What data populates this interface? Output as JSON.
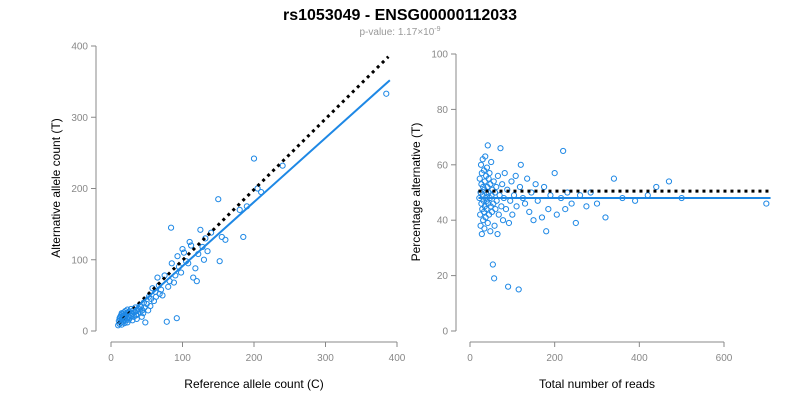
{
  "header": {
    "title": "rs1053049 - ENSG00000112033",
    "pvalue_prefix": "p-value: 1.17",
    "pvalue_times": "×10",
    "pvalue_exp": "-9"
  },
  "colors": {
    "points": "#1e88e5",
    "fit_line": "#1e88e5",
    "reference_line": "#000000",
    "axis": "#888888",
    "subtitle": "#999999"
  },
  "chart_data": [
    {
      "type": "scatter",
      "title": "",
      "xlabel": "Reference allele count (C)",
      "ylabel": "Alternative allele count (T)",
      "xlim": [
        0,
        400
      ],
      "ylim": [
        0,
        400
      ],
      "xticks": [
        0,
        100,
        200,
        300,
        400
      ],
      "yticks": [
        0,
        100,
        200,
        300,
        400
      ],
      "grid": false,
      "fit_line": {
        "style": "solid",
        "from": [
          10,
          10
        ],
        "to": [
          390,
          352
        ]
      },
      "reference_line": {
        "style": "dotted",
        "from": [
          10,
          10
        ],
        "to": [
          388,
          385
        ]
      },
      "points": [
        [
          10,
          8
        ],
        [
          11,
          14
        ],
        [
          12,
          18
        ],
        [
          12,
          10
        ],
        [
          13,
          20
        ],
        [
          13,
          15
        ],
        [
          14,
          22
        ],
        [
          14,
          12
        ],
        [
          15,
          25
        ],
        [
          15,
          17
        ],
        [
          15,
          9
        ],
        [
          16,
          19
        ],
        [
          16,
          24
        ],
        [
          17,
          13
        ],
        [
          17,
          21
        ],
        [
          18,
          26
        ],
        [
          18,
          16
        ],
        [
          19,
          11
        ],
        [
          19,
          23
        ],
        [
          20,
          20
        ],
        [
          20,
          28
        ],
        [
          21,
          15
        ],
        [
          21,
          22
        ],
        [
          22,
          18
        ],
        [
          22,
          25
        ],
        [
          23,
          30
        ],
        [
          23,
          12
        ],
        [
          24,
          20
        ],
        [
          25,
          27
        ],
        [
          25,
          16
        ],
        [
          26,
          23
        ],
        [
          27,
          19
        ],
        [
          28,
          26
        ],
        [
          28,
          31
        ],
        [
          29,
          21
        ],
        [
          30,
          24
        ],
        [
          30,
          15
        ],
        [
          31,
          29
        ],
        [
          32,
          20
        ],
        [
          33,
          26
        ],
        [
          34,
          33
        ],
        [
          35,
          22
        ],
        [
          36,
          28
        ],
        [
          36,
          17
        ],
        [
          38,
          24
        ],
        [
          39,
          31
        ],
        [
          40,
          36
        ],
        [
          41,
          27
        ],
        [
          42,
          34
        ],
        [
          43,
          20
        ],
        [
          44,
          29
        ],
        [
          45,
          25
        ],
        [
          46,
          40
        ],
        [
          47,
          33
        ],
        [
          48,
          12
        ],
        [
          50,
          38
        ],
        [
          52,
          29
        ],
        [
          53,
          48
        ],
        [
          55,
          35
        ],
        [
          56,
          45
        ],
        [
          58,
          60
        ],
        [
          60,
          42
        ],
        [
          62,
          55
        ],
        [
          63,
          48
        ],
        [
          65,
          75
        ],
        [
          67,
          64
        ],
        [
          68,
          52
        ],
        [
          70,
          58
        ],
        [
          72,
          50
        ],
        [
          75,
          78
        ],
        [
          78,
          13
        ],
        [
          80,
          62
        ],
        [
          82,
          70
        ],
        [
          84,
          145
        ],
        [
          85,
          95
        ],
        [
          88,
          68
        ],
        [
          90,
          78
        ],
        [
          92,
          18
        ],
        [
          93,
          105
        ],
        [
          95,
          90
        ],
        [
          98,
          82
        ],
        [
          100,
          115
        ],
        [
          102,
          110
        ],
        [
          105,
          98
        ],
        [
          108,
          95
        ],
        [
          110,
          125
        ],
        [
          112,
          120
        ],
        [
          115,
          75
        ],
        [
          118,
          88
        ],
        [
          120,
          70
        ],
        [
          122,
          108
        ],
        [
          125,
          142
        ],
        [
          128,
          118
        ],
        [
          130,
          100
        ],
        [
          132,
          130
        ],
        [
          135,
          112
        ],
        [
          140,
          138
        ],
        [
          150,
          185
        ],
        [
          152,
          98
        ],
        [
          155,
          132
        ],
        [
          160,
          128
        ],
        [
          180,
          170
        ],
        [
          185,
          132
        ],
        [
          190,
          175
        ],
        [
          200,
          242
        ],
        [
          205,
          200
        ],
        [
          210,
          195
        ],
        [
          240,
          232
        ],
        [
          385,
          333
        ]
      ]
    },
    {
      "type": "scatter",
      "title": "",
      "xlabel": "Total number of reads",
      "ylabel": "Percentage alternative (T)",
      "xlim": [
        0,
        600
      ],
      "ylim": [
        0,
        100
      ],
      "xticks": [
        0,
        200,
        400,
        600
      ],
      "yticks": [
        0,
        20,
        40,
        60,
        80,
        100
      ],
      "grid": false,
      "fit_line": {
        "style": "solid",
        "from": [
          20,
          48
        ],
        "to": [
          710,
          48
        ]
      },
      "reference_line": {
        "style": "dotted",
        "from": [
          20,
          50.5
        ],
        "to": [
          710,
          50.5
        ]
      },
      "points": [
        [
          22,
          48
        ],
        [
          23,
          55
        ],
        [
          24,
          42
        ],
        [
          25,
          50
        ],
        [
          25,
          38
        ],
        [
          26,
          60
        ],
        [
          27,
          46
        ],
        [
          27,
          53
        ],
        [
          28,
          35
        ],
        [
          28,
          57
        ],
        [
          29,
          44
        ],
        [
          30,
          49
        ],
        [
          30,
          62
        ],
        [
          31,
          40
        ],
        [
          31,
          52
        ],
        [
          32,
          47
        ],
        [
          33,
          58
        ],
        [
          33,
          43
        ],
        [
          34,
          51
        ],
        [
          34,
          37
        ],
        [
          35,
          54
        ],
        [
          35,
          45
        ],
        [
          36,
          63
        ],
        [
          36,
          48
        ],
        [
          37,
          41
        ],
        [
          38,
          56
        ],
        [
          38,
          50
        ],
        [
          39,
          44
        ],
        [
          40,
          59
        ],
        [
          40,
          47
        ],
        [
          41,
          52
        ],
        [
          42,
          39
        ],
        [
          42,
          67
        ],
        [
          43,
          46
        ],
        [
          44,
          55
        ],
        [
          44,
          50
        ],
        [
          45,
          42
        ],
        [
          46,
          57
        ],
        [
          47,
          48
        ],
        [
          48,
          36
        ],
        [
          48,
          53
        ],
        [
          49,
          45
        ],
        [
          50,
          61
        ],
        [
          51,
          49
        ],
        [
          52,
          43
        ],
        [
          53,
          51
        ],
        [
          54,
          24
        ],
        [
          55,
          46
        ],
        [
          56,
          54
        ],
        [
          57,
          19
        ],
        [
          58,
          38
        ],
        [
          59,
          50
        ],
        [
          60,
          44
        ],
        [
          62,
          52
        ],
        [
          63,
          47
        ],
        [
          65,
          35
        ],
        [
          66,
          56
        ],
        [
          68,
          42
        ],
        [
          70,
          49
        ],
        [
          72,
          66
        ],
        [
          74,
          45
        ],
        [
          76,
          53
        ],
        [
          78,
          40
        ],
        [
          80,
          48
        ],
        [
          82,
          57
        ],
        [
          85,
          44
        ],
        [
          88,
          51
        ],
        [
          90,
          16
        ],
        [
          92,
          39
        ],
        [
          95,
          47
        ],
        [
          98,
          54
        ],
        [
          100,
          42
        ],
        [
          104,
          49
        ],
        [
          108,
          56
        ],
        [
          110,
          45
        ],
        [
          115,
          15
        ],
        [
          118,
          52
        ],
        [
          120,
          60
        ],
        [
          125,
          48
        ],
        [
          130,
          46
        ],
        [
          135,
          55
        ],
        [
          140,
          43
        ],
        [
          145,
          50
        ],
        [
          150,
          40
        ],
        [
          155,
          53
        ],
        [
          160,
          47
        ],
        [
          170,
          41
        ],
        [
          175,
          52
        ],
        [
          180,
          36
        ],
        [
          185,
          44
        ],
        [
          190,
          49
        ],
        [
          200,
          57
        ],
        [
          205,
          42
        ],
        [
          215,
          48
        ],
        [
          220,
          65
        ],
        [
          225,
          44
        ],
        [
          230,
          50
        ],
        [
          240,
          46
        ],
        [
          250,
          39
        ],
        [
          260,
          49
        ],
        [
          275,
          45
        ],
        [
          285,
          50
        ],
        [
          300,
          46
        ],
        [
          320,
          41
        ],
        [
          340,
          55
        ],
        [
          360,
          48
        ],
        [
          390,
          47
        ],
        [
          420,
          49
        ],
        [
          440,
          52
        ],
        [
          470,
          54
        ],
        [
          500,
          48
        ],
        [
          700,
          46
        ]
      ]
    }
  ]
}
